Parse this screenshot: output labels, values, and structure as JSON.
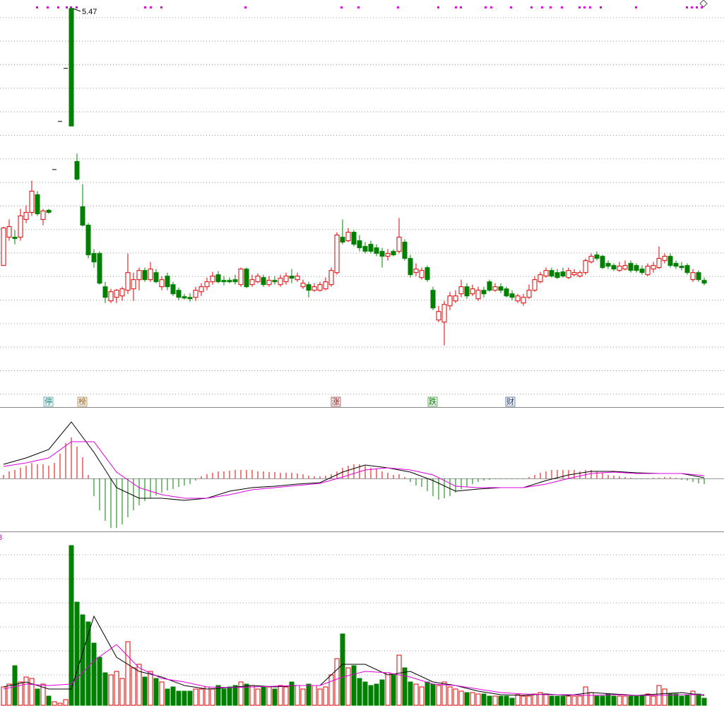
{
  "chart_data": [
    {
      "type": "candlestick",
      "open": [
        1.84,
        2.24,
        2.24,
        2.24,
        2.49,
        2.59,
        2.84,
        2.49,
        2.62,
        3.2,
        3.88,
        4.63,
        5.47,
        3.31,
        2.67,
        2.41,
        2.01,
        2.01,
        1.54,
        1.34,
        1.39,
        1.41,
        1.49,
        1.51,
        1.64,
        1.77,
        1.64,
        1.74,
        1.54,
        1.69,
        1.57,
        1.49,
        1.4,
        1.39,
        1.39,
        1.47,
        1.54,
        1.61,
        1.71,
        1.63,
        1.63,
        1.64,
        1.57,
        1.79,
        1.57,
        1.61,
        1.67,
        1.57,
        1.63,
        1.57,
        1.61,
        1.69,
        1.64,
        1.54,
        1.57,
        1.49,
        1.49,
        1.51,
        1.57,
        1.74,
        2.24,
        2.19,
        2.31,
        2.19,
        2.11,
        2.14,
        2.09,
        2.04,
        1.97,
        2.04,
        2.04,
        2.17,
        1.94,
        1.74,
        1.67,
        1.81,
        1.49,
        1.07,
        1.04,
        1.27,
        1.34,
        1.44,
        1.54,
        1.44,
        1.37,
        1.49,
        1.61,
        1.49,
        1.54,
        1.51,
        1.44,
        1.34,
        1.31,
        1.39,
        1.49,
        1.61,
        1.69,
        1.77,
        1.74,
        1.75,
        1.67,
        1.71,
        1.69,
        1.74,
        1.89,
        1.99,
        1.97,
        1.87,
        1.84,
        1.77,
        1.79,
        1.87,
        1.84,
        1.79,
        1.71,
        1.79,
        1.81,
        1.91,
        1.97,
        1.87,
        1.83,
        1.84,
        1.64,
        1.74,
        1.63
      ],
      "high": [
        2.39,
        2.49,
        2.34,
        2.64,
        2.69,
        3.04,
        2.89,
        2.64,
        2.64,
        3.2,
        3.88,
        4.63,
        5.47,
        3.42,
        2.99,
        2.44,
        2.07,
        2.04,
        1.61,
        1.51,
        1.51,
        1.54,
        2.01,
        1.74,
        1.81,
        1.81,
        1.89,
        1.79,
        1.69,
        1.74,
        1.61,
        1.53,
        1.44,
        1.45,
        1.54,
        1.59,
        1.67,
        1.75,
        1.76,
        1.69,
        1.67,
        1.71,
        1.81,
        1.81,
        1.71,
        1.73,
        1.71,
        1.69,
        1.69,
        1.71,
        1.74,
        1.79,
        1.74,
        1.64,
        1.61,
        1.59,
        1.61,
        1.67,
        1.81,
        2.31,
        2.49,
        2.37,
        2.34,
        2.27,
        2.17,
        2.19,
        2.14,
        2.09,
        2.07,
        2.07,
        2.51,
        2.21,
        1.99,
        1.87,
        1.81,
        1.84,
        1.54,
        1.27,
        1.34,
        1.47,
        1.49,
        1.64,
        1.59,
        1.57,
        1.54,
        1.54,
        1.64,
        1.59,
        1.59,
        1.54,
        1.49,
        1.44,
        1.44,
        1.57,
        1.69,
        1.75,
        1.81,
        1.81,
        1.79,
        1.81,
        1.81,
        1.79,
        1.77,
        1.94,
        2.01,
        2.04,
        1.99,
        1.91,
        1.87,
        1.89,
        1.91,
        1.91,
        1.87,
        1.84,
        1.87,
        1.89,
        2.11,
        2.01,
        2.01,
        1.91,
        1.89,
        1.87,
        1.79,
        1.77,
        1.67
      ],
      "low": [
        1.84,
        2.19,
        2.14,
        2.19,
        2.44,
        2.54,
        2.54,
        2.41,
        2.57,
        3.2,
        3.88,
        4.63,
        3.81,
        3.04,
        2.39,
        1.94,
        1.81,
        1.57,
        1.31,
        1.31,
        1.31,
        1.34,
        1.44,
        1.34,
        1.49,
        1.61,
        1.61,
        1.59,
        1.49,
        1.49,
        1.41,
        1.35,
        1.36,
        1.33,
        1.34,
        1.41,
        1.49,
        1.57,
        1.59,
        1.56,
        1.59,
        1.57,
        1.54,
        1.52,
        1.54,
        1.59,
        1.54,
        1.54,
        1.57,
        1.54,
        1.57,
        1.59,
        1.61,
        1.51,
        1.39,
        1.47,
        1.47,
        1.49,
        1.54,
        1.71,
        2.14,
        2.17,
        2.11,
        2.04,
        2.01,
        2.01,
        1.97,
        1.81,
        1.91,
        1.97,
        2.01,
        1.91,
        1.67,
        1.69,
        1.64,
        1.61,
        1.21,
        1.04,
        0.71,
        1.21,
        1.31,
        1.39,
        1.37,
        1.41,
        1.34,
        1.39,
        1.47,
        1.47,
        1.45,
        1.39,
        1.35,
        1.31,
        1.27,
        1.37,
        1.47,
        1.59,
        1.67,
        1.67,
        1.65,
        1.67,
        1.65,
        1.69,
        1.67,
        1.71,
        1.87,
        1.91,
        1.79,
        1.79,
        1.76,
        1.75,
        1.77,
        1.74,
        1.74,
        1.71,
        1.69,
        1.74,
        1.79,
        1.87,
        1.81,
        1.79,
        1.77,
        1.71,
        1.61,
        1.61,
        1.56
      ],
      "close": [
        2.37,
        2.39,
        2.22,
        2.54,
        2.59,
        2.89,
        2.57,
        2.61,
        2.59,
        3.2,
        3.88,
        4.63,
        3.81,
        3.06,
        2.41,
        1.99,
        1.89,
        1.59,
        1.39,
        1.47,
        1.49,
        1.51,
        1.74,
        1.64,
        1.77,
        1.64,
        1.79,
        1.61,
        1.64,
        1.54,
        1.44,
        1.39,
        1.38,
        1.37,
        1.49,
        1.54,
        1.61,
        1.69,
        1.61,
        1.61,
        1.61,
        1.61,
        1.79,
        1.54,
        1.64,
        1.69,
        1.57,
        1.63,
        1.61,
        1.66,
        1.69,
        1.66,
        1.69,
        1.59,
        1.49,
        1.54,
        1.57,
        1.61,
        1.77,
        2.27,
        2.17,
        2.31,
        2.14,
        2.09,
        2.04,
        2.04,
        2.01,
        1.97,
        2.01,
        1.99,
        2.24,
        1.94,
        1.71,
        1.79,
        1.77,
        1.64,
        1.24,
        1.19,
        1.29,
        1.41,
        1.41,
        1.54,
        1.41,
        1.51,
        1.49,
        1.44,
        1.49,
        1.54,
        1.49,
        1.41,
        1.39,
        1.41,
        1.39,
        1.49,
        1.64,
        1.71,
        1.77,
        1.69,
        1.67,
        1.69,
        1.77,
        1.74,
        1.74,
        1.91,
        1.97,
        1.94,
        1.81,
        1.83,
        1.79,
        1.83,
        1.84,
        1.77,
        1.77,
        1.74,
        1.83,
        1.84,
        1.94,
        1.97,
        1.84,
        1.83,
        1.81,
        1.74,
        1.74,
        1.64,
        1.59
      ],
      "ylim": [
        0,
        5.59
      ],
      "up_color": "#e00000",
      "down_color": "#008000",
      "markers": [
        {
          "label": "停",
          "color": "#138a8a"
        },
        {
          "label": "榜",
          "color": "#a0620a"
        },
        {
          "label": "涨",
          "color": "#8a1010"
        },
        {
          "label": "跌",
          "color": "#0a7a0a"
        },
        {
          "label": "财",
          "color": "#1a3a7a"
        }
      ]
    },
    {
      "type": "macd",
      "values": [
        5,
        10,
        12,
        15,
        18,
        22,
        20,
        20,
        18,
        22,
        35,
        50,
        58,
        45,
        30,
        5,
        -25,
        -45,
        -60,
        -70,
        -70,
        -65,
        -55,
        -45,
        -38,
        -32,
        -28,
        -24,
        -20,
        -17,
        -15,
        -12,
        -10,
        -8,
        -3,
        3,
        6,
        8,
        10,
        10,
        11,
        12,
        12,
        12,
        12,
        10,
        10,
        9,
        9,
        8,
        8,
        8,
        7,
        6,
        4,
        3,
        3,
        4,
        6,
        10,
        15,
        18,
        20,
        20,
        18,
        15,
        13,
        10,
        8,
        5,
        6,
        2,
        -5,
        -10,
        -12,
        -18,
        -25,
        -30,
        -28,
        -25,
        -20,
        -15,
        -12,
        -8,
        -5,
        -3,
        -2,
        -1,
        -1,
        -1,
        -1,
        -1,
        -1,
        2,
        5,
        8,
        10,
        12,
        12,
        12,
        12,
        12,
        10,
        12,
        12,
        10,
        8,
        5,
        4,
        3,
        2,
        1,
        -1,
        -1,
        -1,
        1,
        1,
        2,
        2,
        1,
        -2,
        -3,
        -5,
        -7,
        -8
      ],
      "ylim": [
        -75,
        100
      ],
      "up_color": "#e00000",
      "down_color": "#008000",
      "series": [
        {
          "color": "#000000",
          "x": [
            0,
            4,
            8,
            12,
            16,
            20,
            24,
            28,
            32,
            36,
            40,
            44,
            48,
            52,
            56,
            60,
            64,
            68,
            72,
            76,
            80,
            84,
            88,
            92,
            96,
            100,
            104,
            108,
            112,
            116,
            120,
            124
          ],
          "values": [
            20,
            29,
            41,
            80,
            37,
            -13,
            -28,
            -28,
            -31,
            -28,
            -18,
            -13,
            -11,
            -8,
            -6,
            9,
            19,
            15,
            9,
            -3,
            -18,
            -15,
            -13,
            -13,
            -3,
            5,
            10,
            10,
            8,
            7,
            7,
            1
          ]
        },
        {
          "color": "#e000e0",
          "x": [
            0,
            4,
            8,
            12,
            16,
            20,
            24,
            28,
            32,
            36,
            40,
            44,
            48,
            52,
            56,
            60,
            64,
            68,
            72,
            76,
            80,
            84,
            88,
            92,
            96,
            100,
            104,
            108,
            112,
            116,
            120,
            124
          ],
          "values": [
            17,
            22,
            29,
            52,
            52,
            9,
            -13,
            -23,
            -28,
            -28,
            -23,
            -16,
            -13,
            -10,
            -7,
            2,
            12,
            15,
            12,
            5,
            -11,
            -13,
            -13,
            -13,
            -8,
            0,
            7,
            9,
            7,
            7,
            7,
            4
          ]
        }
      ]
    },
    {
      "type": "volume",
      "title": "3",
      "values": [
        26,
        30,
        56,
        33,
        40,
        38,
        23,
        30,
        13,
        5,
        3,
        8,
        226,
        146,
        128,
        118,
        88,
        68,
        46,
        43,
        48,
        38,
        90,
        53,
        58,
        40,
        48,
        38,
        33,
        23,
        26,
        20,
        20,
        20,
        23,
        23,
        26,
        23,
        28,
        23,
        26,
        28,
        33,
        30,
        28,
        23,
        26,
        26,
        23,
        28,
        26,
        33,
        28,
        23,
        30,
        28,
        23,
        26,
        43,
        66,
        101,
        53,
        56,
        38,
        33,
        28,
        30,
        36,
        46,
        43,
        71,
        53,
        33,
        30,
        26,
        33,
        30,
        28,
        33,
        26,
        23,
        20,
        18,
        18,
        16,
        16,
        13,
        13,
        13,
        13,
        10,
        15,
        13,
        13,
        16,
        18,
        16,
        13,
        13,
        13,
        13,
        13,
        13,
        26,
        18,
        13,
        13,
        16,
        13,
        13,
        13,
        13,
        13,
        13,
        16,
        13,
        28,
        23,
        16,
        16,
        13,
        14,
        20,
        16,
        10
      ],
      "ylim": [
        0,
        246
      ],
      "series": [
        {
          "color": "#000000",
          "x": [
            0,
            4,
            8,
            12,
            16,
            20,
            24,
            28,
            32,
            36,
            40,
            44,
            48,
            52,
            56,
            60,
            64,
            68,
            72,
            76,
            80,
            84,
            88,
            92,
            96,
            100,
            104,
            108,
            112,
            116,
            120,
            124
          ],
          "values": [
            26,
            33,
            23,
            23,
            126,
            68,
            48,
            40,
            28,
            23,
            25,
            28,
            26,
            28,
            28,
            58,
            58,
            43,
            48,
            33,
            28,
            20,
            15,
            14,
            16,
            14,
            18,
            16,
            14,
            16,
            18,
            14
          ]
        },
        {
          "color": "#e000e0",
          "x": [
            0,
            4,
            8,
            12,
            16,
            20,
            24,
            28,
            32,
            36,
            40,
            44,
            48,
            52,
            56,
            60,
            64,
            68,
            72,
            76,
            80,
            84,
            88,
            92,
            96,
            100,
            104,
            108,
            112,
            116,
            120,
            124
          ],
          "values": [
            23,
            30,
            28,
            30,
            63,
            86,
            53,
            38,
            33,
            26,
            25,
            26,
            27,
            28,
            28,
            40,
            48,
            46,
            40,
            30,
            28,
            23,
            18,
            16,
            15,
            15,
            14,
            15,
            14,
            14,
            15,
            15
          ]
        }
      ]
    }
  ]
}
